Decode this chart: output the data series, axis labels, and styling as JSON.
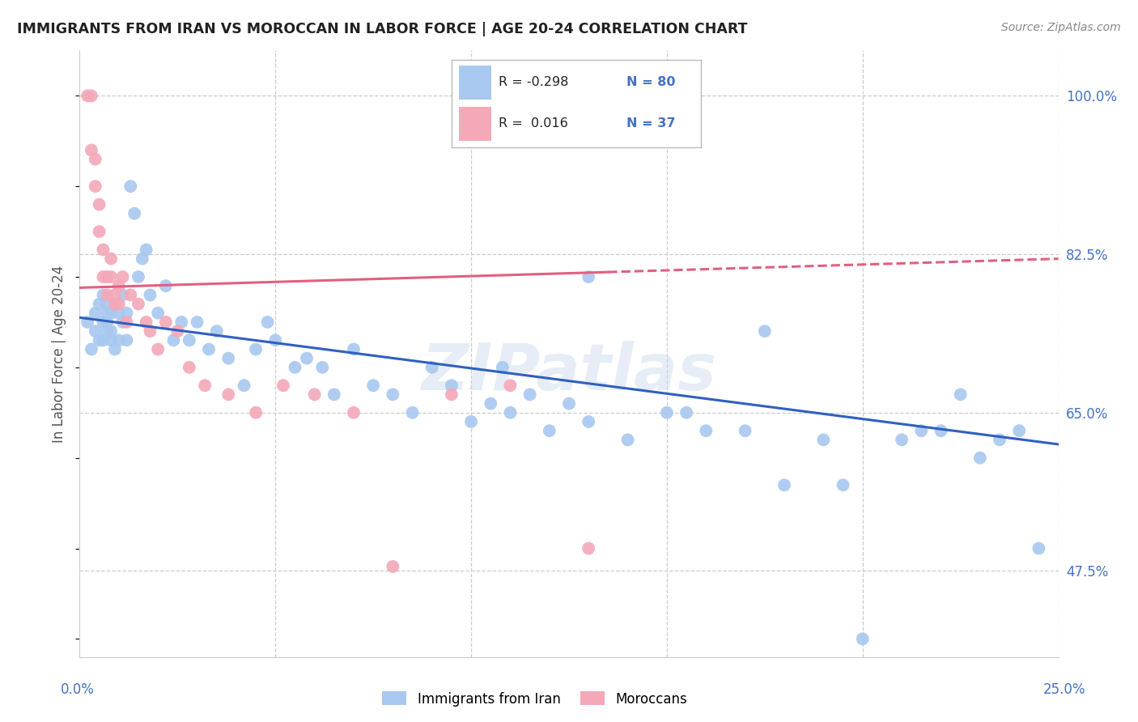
{
  "title": "IMMIGRANTS FROM IRAN VS MOROCCAN IN LABOR FORCE | AGE 20-24 CORRELATION CHART",
  "source": "Source: ZipAtlas.com",
  "ylabel": "In Labor Force | Age 20-24",
  "yticks": [
    "47.5%",
    "65.0%",
    "82.5%",
    "100.0%"
  ],
  "ytick_vals": [
    0.475,
    0.65,
    0.825,
    1.0
  ],
  "xlim": [
    0.0,
    0.25
  ],
  "ylim": [
    0.38,
    1.05
  ],
  "color_iran": "#A8C8F0",
  "color_morocco": "#F4A8B8",
  "color_iran_line": "#3060C0",
  "color_morocco_line": "#E06080",
  "watermark": "ZIPatlas",
  "iran_line_x0": 0.0,
  "iran_line_y0": 0.755,
  "iran_line_x1": 0.25,
  "iran_line_y1": 0.615,
  "morocco_line_x0": 0.0,
  "morocco_line_y0": 0.788,
  "morocco_line_x1": 0.25,
  "morocco_line_y1": 0.82,
  "morocco_line_solid_end": 0.135,
  "iran_pts_x": [
    0.002,
    0.003,
    0.004,
    0.004,
    0.005,
    0.005,
    0.006,
    0.006,
    0.006,
    0.007,
    0.007,
    0.007,
    0.007,
    0.008,
    0.008,
    0.008,
    0.009,
    0.009,
    0.01,
    0.01,
    0.011,
    0.011,
    0.012,
    0.012,
    0.013,
    0.014,
    0.015,
    0.016,
    0.017,
    0.018,
    0.02,
    0.022,
    0.024,
    0.026,
    0.028,
    0.03,
    0.033,
    0.035,
    0.038,
    0.042,
    0.045,
    0.048,
    0.05,
    0.055,
    0.058,
    0.062,
    0.065,
    0.07,
    0.075,
    0.08,
    0.085,
    0.09,
    0.095,
    0.1,
    0.105,
    0.11,
    0.115,
    0.12,
    0.125,
    0.13,
    0.14,
    0.15,
    0.16,
    0.17,
    0.18,
    0.19,
    0.195,
    0.2,
    0.21,
    0.215,
    0.22,
    0.225,
    0.23,
    0.235,
    0.24,
    0.245,
    0.13,
    0.175,
    0.155,
    0.108
  ],
  "iran_pts_y": [
    0.75,
    0.72,
    0.76,
    0.74,
    0.73,
    0.77,
    0.75,
    0.78,
    0.73,
    0.76,
    0.77,
    0.74,
    0.75,
    0.73,
    0.74,
    0.76,
    0.77,
    0.72,
    0.73,
    0.76,
    0.75,
    0.78,
    0.73,
    0.76,
    0.9,
    0.87,
    0.8,
    0.82,
    0.83,
    0.78,
    0.76,
    0.79,
    0.73,
    0.75,
    0.73,
    0.75,
    0.72,
    0.74,
    0.71,
    0.68,
    0.72,
    0.75,
    0.73,
    0.7,
    0.71,
    0.7,
    0.67,
    0.72,
    0.68,
    0.67,
    0.65,
    0.7,
    0.68,
    0.64,
    0.66,
    0.65,
    0.67,
    0.63,
    0.66,
    0.64,
    0.62,
    0.65,
    0.63,
    0.63,
    0.57,
    0.62,
    0.57,
    0.4,
    0.62,
    0.63,
    0.63,
    0.67,
    0.6,
    0.62,
    0.63,
    0.5,
    0.8,
    0.74,
    0.65,
    0.7
  ],
  "morocco_pts_x": [
    0.002,
    0.003,
    0.003,
    0.004,
    0.004,
    0.005,
    0.005,
    0.006,
    0.006,
    0.007,
    0.007,
    0.008,
    0.008,
    0.009,
    0.009,
    0.01,
    0.01,
    0.011,
    0.012,
    0.013,
    0.015,
    0.017,
    0.018,
    0.02,
    0.022,
    0.025,
    0.028,
    0.032,
    0.038,
    0.045,
    0.052,
    0.06,
    0.07,
    0.08,
    0.095,
    0.11,
    0.13
  ],
  "morocco_pts_y": [
    1.0,
    1.0,
    0.94,
    0.93,
    0.9,
    0.88,
    0.85,
    0.83,
    0.8,
    0.8,
    0.78,
    0.82,
    0.8,
    0.78,
    0.77,
    0.79,
    0.77,
    0.8,
    0.75,
    0.78,
    0.77,
    0.75,
    0.74,
    0.72,
    0.75,
    0.74,
    0.7,
    0.68,
    0.67,
    0.65,
    0.68,
    0.67,
    0.65,
    0.48,
    0.67,
    0.68,
    0.5
  ]
}
